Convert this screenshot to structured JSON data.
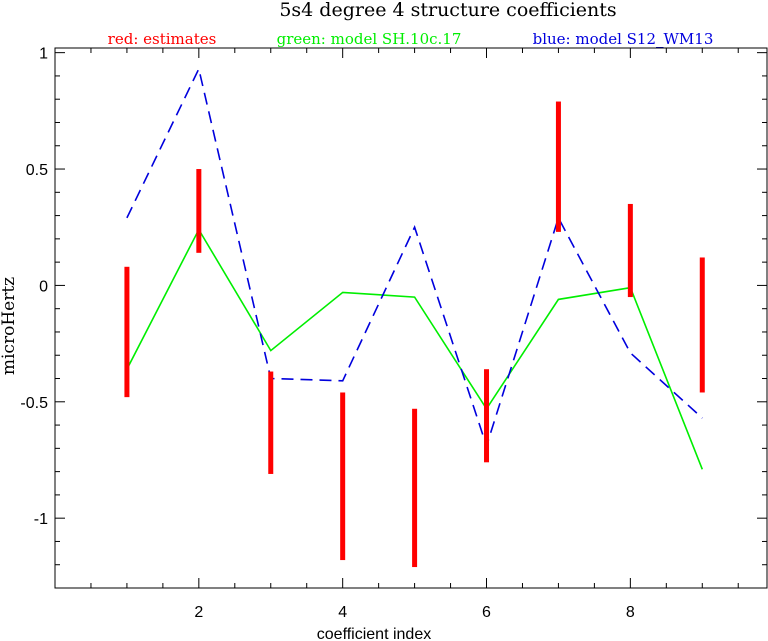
{
  "chart_data": {
    "type": "line",
    "title": "5s4 degree 4 structure coefficients",
    "xlabel": "coefficient index",
    "ylabel": "microHertz",
    "xlim": [
      0,
      9.9
    ],
    "ylim": [
      -1.3,
      1.02
    ],
    "xticks": [
      2,
      4,
      6,
      8
    ],
    "yticks": [
      1,
      0.5,
      0,
      -0.5,
      -1
    ],
    "ytick_labels": [
      "1",
      "0.5",
      "0",
      "-0.5",
      "-1"
    ],
    "legend": [
      {
        "text": "red: estimates",
        "color": "#ff0000"
      },
      {
        "text": "green: model SH.10c.17",
        "color": "#00ee00"
      },
      {
        "text": "blue: model S12_WM13",
        "color": "#0000dd"
      }
    ],
    "estimates": {
      "name": "estimates",
      "color": "#ff0000",
      "x": [
        1,
        2,
        3,
        4,
        5,
        6,
        7,
        8,
        9
      ],
      "low": [
        -0.48,
        0.14,
        -0.81,
        -1.18,
        -1.21,
        -0.76,
        0.23,
        -0.05,
        -0.46
      ],
      "high": [
        0.08,
        0.5,
        -0.37,
        -0.46,
        -0.53,
        -0.36,
        0.79,
        0.35,
        0.12
      ]
    },
    "series": [
      {
        "name": "model SH.10c.17",
        "color": "#00ee00",
        "dash": "",
        "x": [
          1,
          2,
          3,
          4,
          5,
          6,
          7,
          8,
          9
        ],
        "values": [
          -0.36,
          0.24,
          -0.28,
          -0.03,
          -0.05,
          -0.53,
          -0.06,
          -0.01,
          -0.79
        ]
      },
      {
        "name": "model S12_WM13",
        "color": "#0000dd",
        "dash": "12,7",
        "x": [
          1,
          2,
          3,
          4,
          5,
          6,
          7,
          8,
          9
        ],
        "values": [
          0.29,
          0.93,
          -0.4,
          -0.41,
          0.25,
          -0.69,
          0.29,
          -0.29,
          -0.57
        ]
      }
    ]
  }
}
